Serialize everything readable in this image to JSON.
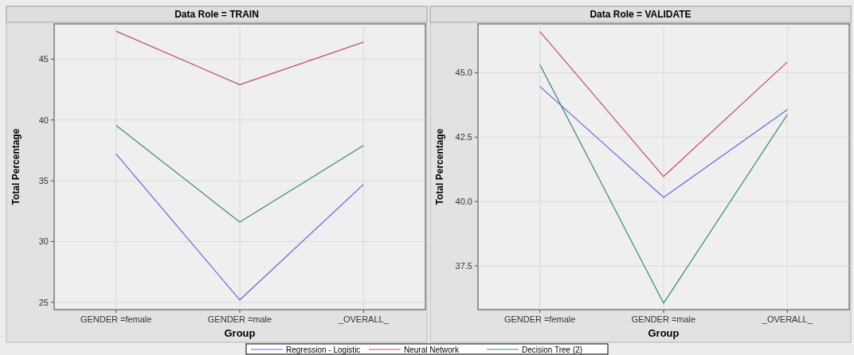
{
  "chart_data": [
    {
      "type": "line",
      "title": "Data Role = TRAIN",
      "xlabel": "Group",
      "ylabel": "Total Percentage",
      "categories": [
        "GENDER =female",
        "GENDER =male",
        "_OVERALL_"
      ],
      "ylim": [
        24.4,
        47.9
      ],
      "yticks": [
        25,
        30,
        35,
        40,
        45
      ],
      "grid": true,
      "legend": "bottom",
      "series": [
        {
          "name": "Regression - Logistic",
          "color": "#6b63d9",
          "values": [
            37.2,
            25.2,
            34.7
          ]
        },
        {
          "name": "Neural Network",
          "color": "#c0505a",
          "values": [
            47.3,
            42.9,
            46.4
          ]
        },
        {
          "name": "Decision Tree (2)",
          "color": "#3a8a7a",
          "values": [
            39.55,
            31.6,
            37.9
          ]
        }
      ]
    },
    {
      "type": "line",
      "title": "Data Role = VALIDATE",
      "xlabel": "Group",
      "ylabel": "Total Percentage",
      "categories": [
        "GENDER =female",
        "GENDER =male",
        "_OVERALL_"
      ],
      "ylim": [
        35.8,
        46.9
      ],
      "yticks": [
        {
          "value": 37.5,
          "label": "37.5"
        },
        {
          "value": 40,
          "label": "40.0"
        },
        {
          "value": 42.5,
          "label": "42.5"
        },
        {
          "value": 45,
          "label": "45.0"
        }
      ],
      "grid": true,
      "series": [
        {
          "color": "#6b63d9",
          "values": [
            44.47,
            40.16,
            43.57
          ]
        },
        {
          "color": "#c0505a",
          "values": [
            46.6,
            40.97,
            45.42
          ]
        },
        {
          "color": "#3a8a7a",
          "values": [
            45.32,
            36.05,
            43.38
          ]
        }
      ]
    }
  ]
}
